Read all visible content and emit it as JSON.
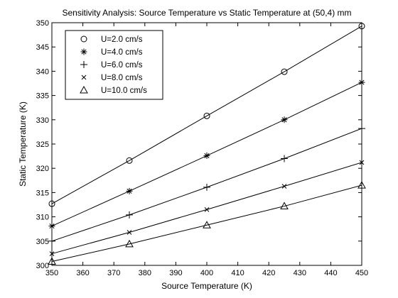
{
  "chart_data": {
    "type": "line",
    "title": "Sensitivity Analysis: Source Temperature vs Static Temperature at (50,4) mm",
    "xlabel": "Source Temperature (K)",
    "ylabel": "Static Temperature (K)",
    "xlim": [
      350,
      450
    ],
    "ylim": [
      300,
      350
    ],
    "xticks": [
      "350",
      "360",
      "370",
      "380",
      "390",
      "400",
      "410",
      "420",
      "430",
      "440",
      "450"
    ],
    "yticks": [
      "300",
      "305",
      "310",
      "315",
      "320",
      "325",
      "330",
      "335",
      "340",
      "345",
      "350"
    ],
    "x": [
      350,
      375,
      400,
      425,
      450
    ],
    "grid": false,
    "legend_position": "top-left",
    "series": [
      {
        "name": "U=2.0 cm/s",
        "marker": "circle",
        "values": [
          312.7,
          321.6,
          330.8,
          339.9,
          349.3
        ]
      },
      {
        "name": "U=4.0 cm/s",
        "marker": "asterisk",
        "values": [
          308.1,
          315.3,
          322.6,
          330.0,
          337.7
        ]
      },
      {
        "name": "U=6.0 cm/s",
        "marker": "plus",
        "values": [
          305.0,
          310.4,
          316.1,
          322.0,
          328.2
        ]
      },
      {
        "name": "U=8.0 cm/s",
        "marker": "cross",
        "values": [
          302.4,
          306.8,
          311.5,
          316.3,
          321.2
        ]
      },
      {
        "name": "U=10.0 cm/s",
        "marker": "triangle",
        "values": [
          300.8,
          304.4,
          308.3,
          312.2,
          316.5
        ]
      }
    ]
  }
}
